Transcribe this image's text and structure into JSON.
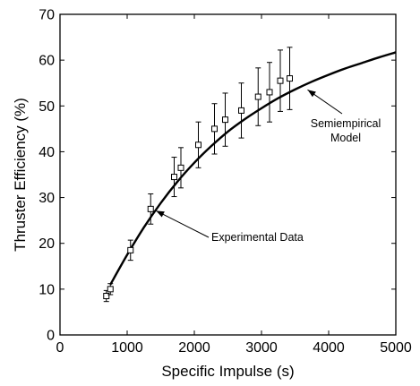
{
  "chart_data": {
    "type": "scatter",
    "title": "",
    "xlabel": "Specific Impulse (s)",
    "ylabel": "Thruster Efficiency (%)",
    "xlim": [
      0,
      5000
    ],
    "ylim": [
      0,
      70
    ],
    "xticks": [
      0,
      1000,
      2000,
      3000,
      4000,
      5000
    ],
    "yticks": [
      0,
      10,
      20,
      30,
      40,
      50,
      60,
      70
    ],
    "grid": false,
    "legend": "none",
    "series": [
      {
        "kind": "scatter-errorbar",
        "marker": "square",
        "x": [
          690,
          750,
          1050,
          1350,
          1700,
          1800,
          2060,
          2300,
          2460,
          2700,
          2950,
          3120,
          3280,
          3420
        ],
        "y": [
          8.5,
          10,
          18.5,
          27.5,
          34.5,
          36.5,
          41.5,
          45,
          47,
          49,
          52,
          53,
          55.5,
          56
        ],
        "yerr": [
          1.2,
          1.2,
          2.2,
          3.3,
          4.3,
          4.4,
          5.0,
          5.5,
          5.8,
          6.0,
          6.3,
          6.5,
          6.7,
          6.8
        ]
      },
      {
        "kind": "line",
        "x": [
          750,
          1000,
          1250,
          1500,
          1750,
          2000,
          2250,
          2500,
          2750,
          3000,
          3250,
          3500,
          3750,
          4000,
          4250,
          4500,
          4750,
          5000
        ],
        "y": [
          11,
          17.5,
          23.5,
          28.8,
          33.5,
          37.6,
          41.2,
          44.4,
          47.1,
          49.5,
          51.7,
          53.6,
          55.3,
          56.8,
          58.2,
          59.4,
          60.6,
          61.7
        ]
      }
    ],
    "annotations": [
      {
        "text": "Experimental Data",
        "target_x": 1350,
        "target_y": 27.5
      },
      {
        "text": "Semiempirical Model",
        "lines": [
          "Semiempirical",
          "Model"
        ],
        "target_x": 3700,
        "target_y": 54.3
      }
    ]
  }
}
